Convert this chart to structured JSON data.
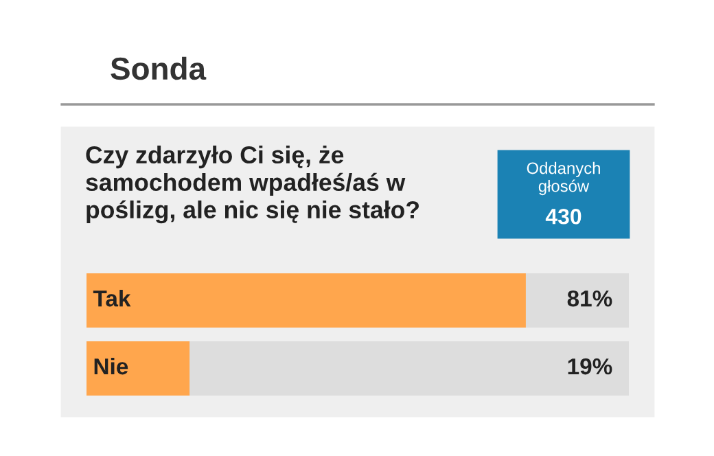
{
  "chart_data": {
    "type": "bar",
    "orientation": "horizontal",
    "title": "Sonda",
    "subtitle": "Czy zdarzyło Ci się, że samochodem wpadłeś/aś w poślizg, ale nic się nie stało?",
    "annotations": [
      "Oddanych głosów",
      "430"
    ],
    "categories": [
      "Tak",
      "Nie"
    ],
    "values": [
      81,
      19
    ],
    "value_labels": [
      "81%",
      "19%"
    ],
    "color": "#ffa64d",
    "xlim": [
      0,
      100
    ]
  }
}
